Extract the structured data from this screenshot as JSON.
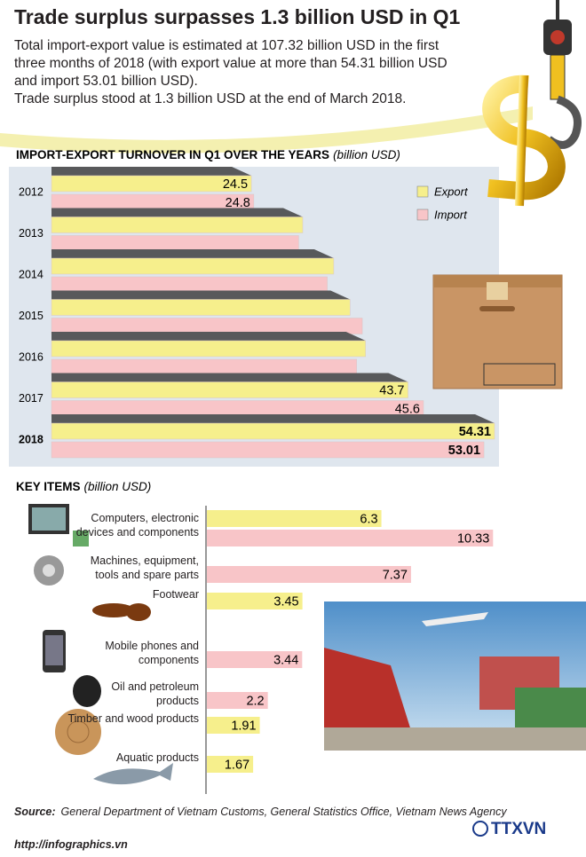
{
  "title": "Trade surplus surpasses 1.3 billion USD in Q1",
  "intro": [
    "Total import-export value is estimated at 107.32 billion USD in the first three months of 2018 (with export value at more than 54.31 billion USD and import 53.01 billion USD).",
    "Trade surplus stood at 1.3 billion USD at the end of March 2018."
  ],
  "chart_data": [
    {
      "type": "bar",
      "orientation": "horizontal",
      "title": "IMPORT-EXPORT TURNOVER IN Q1 OVER THE YEARS",
      "unit": "(billion USD)",
      "categories": [
        "2012",
        "2013",
        "2014",
        "2015",
        "2016",
        "2017",
        "2018"
      ],
      "series": [
        {
          "name": "Export",
          "color": "#f6ef8c",
          "values": [
            24.5,
            30.8,
            34.6,
            36.6,
            38.5,
            43.7,
            54.31
          ],
          "value_labels": [
            "24.5",
            null,
            null,
            null,
            null,
            "43.7",
            "54.31"
          ]
        },
        {
          "name": "Import",
          "color": "#f8c5c8",
          "values": [
            24.8,
            30.3,
            33.8,
            38.1,
            37.4,
            45.6,
            53.01
          ],
          "value_labels": [
            "24.8",
            null,
            null,
            null,
            null,
            "45.6",
            "53.01"
          ]
        }
      ],
      "legend": "top-right"
    },
    {
      "type": "bar",
      "orientation": "horizontal",
      "title": "KEY ITEMS",
      "unit": "(billion USD)",
      "categories": [
        "Computers, electronic devices and components",
        "Machines, equipment, tools and spare parts",
        "Footwear",
        "Mobile phones and components",
        "Oil and petroleum products",
        "Timber and wood products",
        "Aquatic products"
      ],
      "series": [
        {
          "color": "#f6ef8c",
          "values": [
            6.3,
            null,
            3.45,
            null,
            null,
            1.91,
            1.67
          ]
        },
        {
          "color": "#f8c5c8",
          "values": [
            10.33,
            7.37,
            null,
            3.44,
            2.2,
            null,
            null
          ]
        }
      ]
    }
  ],
  "source": {
    "label": "Source:",
    "text": "General Department of Vietnam Customs, General Statistics Office, Vietnam News Agency"
  },
  "url": "http://infographics.vn",
  "logo": "TTXVN"
}
